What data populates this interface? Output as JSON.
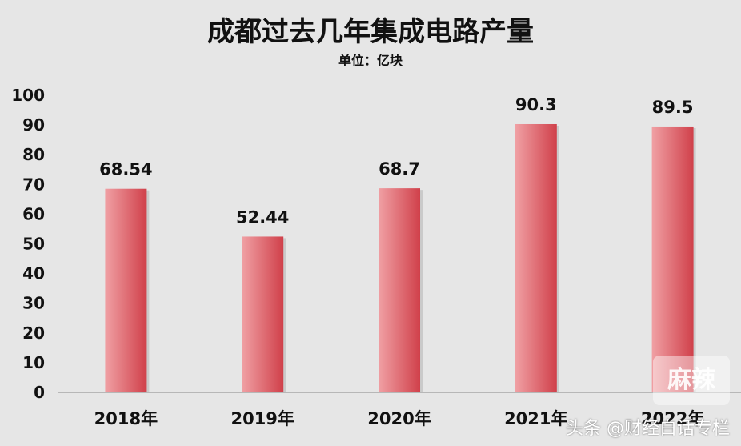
{
  "chart_data": {
    "type": "bar",
    "title": "成都过去几年集成电路产量",
    "subtitle": "单位：亿块",
    "categories": [
      "2018年",
      "2019年",
      "2020年",
      "2021年",
      "2022年"
    ],
    "values": [
      68.54,
      52.44,
      68.7,
      90.3,
      89.5
    ],
    "value_labels": [
      "68.54",
      "52.44",
      "68.7",
      "90.3",
      "89.5"
    ],
    "ylim": [
      0,
      100
    ],
    "yticks": [
      0,
      10,
      20,
      30,
      40,
      50,
      60,
      70,
      80,
      90,
      100
    ],
    "grid": false,
    "legend": "none",
    "bar_color_light": "#f0a0a4",
    "bar_color_dark": "#d0404a"
  },
  "watermark": "头条 @财经白话专栏",
  "logo_text": "麻辣"
}
